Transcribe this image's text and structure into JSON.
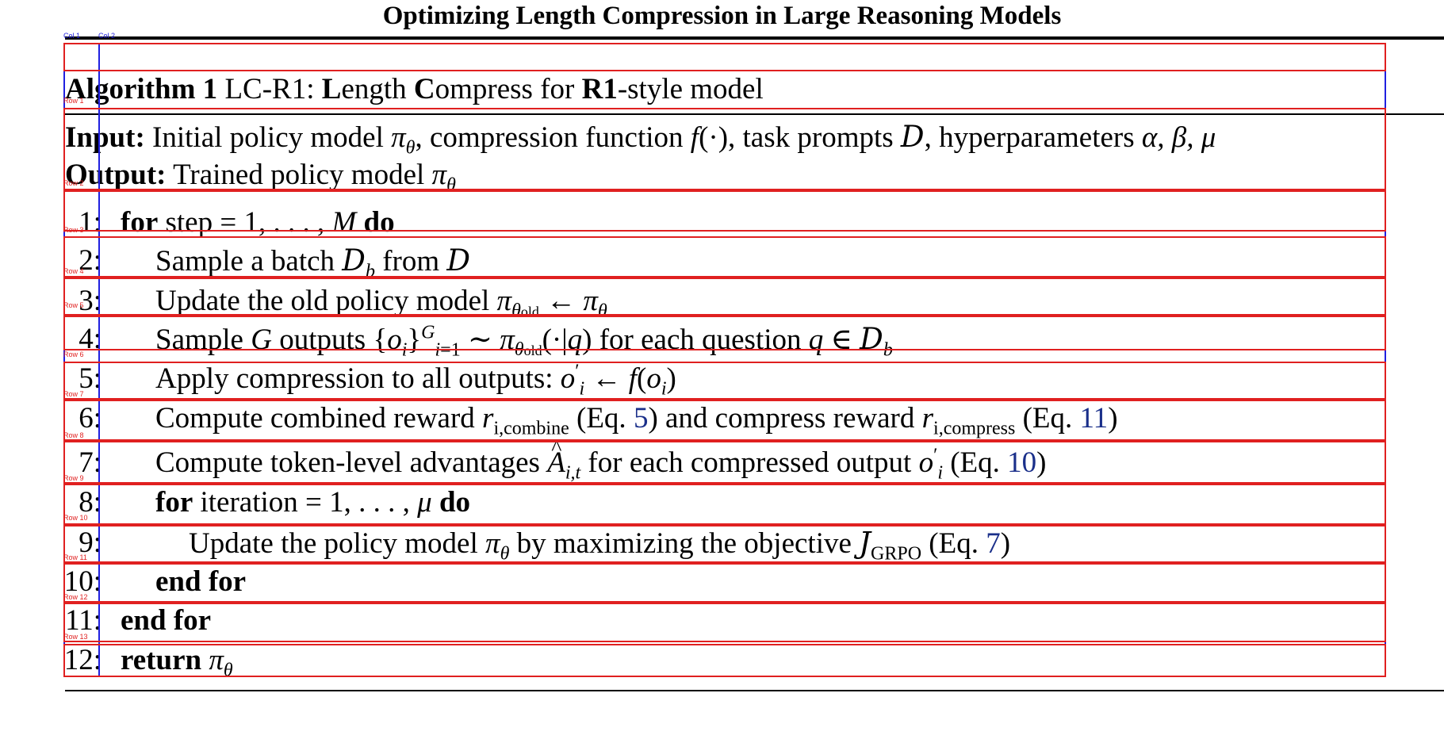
{
  "running_head": "Optimizing Length Compression in Large Reasoning Models",
  "algorithm": {
    "label": "Algorithm 1",
    "name_prefix": "LC-R1: ",
    "name_L": "L",
    "name_ength": "ength ",
    "name_C": "C",
    "name_ompress": "ompress for ",
    "name_R1": "R1",
    "name_suffix": "-style model",
    "input_label": "Input:",
    "input_text_1": "Initial policy model ",
    "input_text_2": ", compression function ",
    "input_text_3": ", task prompts ",
    "input_text_4": ", hyperparameters ",
    "output_label": "Output:",
    "output_text": "Trained policy model ",
    "lines": [
      {
        "num": "1",
        "kw_for": "for",
        "text": " step = ",
        "range": "1, . . . , ",
        "var": "M",
        "kw_do": " do"
      },
      {
        "num": "2",
        "text_1": "Sample a batch ",
        "text_2": " from "
      },
      {
        "num": "3",
        "text_1": "Update the old policy model "
      },
      {
        "num": "4",
        "text_1": "Sample ",
        "text_2": " outputs ",
        "text_3": " for each question "
      },
      {
        "num": "5",
        "text_1": "Apply compression to all outputs: "
      },
      {
        "num": "6",
        "text_1": "Compute combined reward ",
        "sub_1": "i,combine",
        "text_2": " (Eq. ",
        "ref_1": "5",
        "text_3": ") and compress reward ",
        "sub_2": "i,compress",
        "text_4": " (Eq. ",
        "ref_2": "11",
        "text_5": ")"
      },
      {
        "num": "7",
        "text_1": "Compute token-level advantages ",
        "text_2": " for each compressed output ",
        "text_3": " (Eq. ",
        "ref": "10",
        "text_4": ")"
      },
      {
        "num": "8",
        "kw_for": "for",
        "text": " iteration = ",
        "range": "1, . . . , ",
        "kw_do": " do"
      },
      {
        "num": "9",
        "text_1": "Update the policy model ",
        "text_2": " by maximizing the objective ",
        "sub": "GRPO",
        "text_3": " (Eq. ",
        "ref": "7",
        "text_4": ")"
      },
      {
        "num": "10",
        "kw": "end for"
      },
      {
        "num": "11",
        "kw": "end for"
      },
      {
        "num": "12",
        "kw": "return"
      }
    ]
  },
  "overlay": {
    "col_labels": [
      "Col 1",
      "Col 2"
    ],
    "row_labels": [
      "Row 1",
      "Row 2",
      "Row 3",
      "Row 4",
      "Row 5",
      "Row 6",
      "Row 7",
      "Row 8",
      "Row 9",
      "Row 10",
      "Row 11",
      "Row 12",
      "Row 13"
    ],
    "row_color": "#e02020",
    "col_color": "#2020e0"
  }
}
